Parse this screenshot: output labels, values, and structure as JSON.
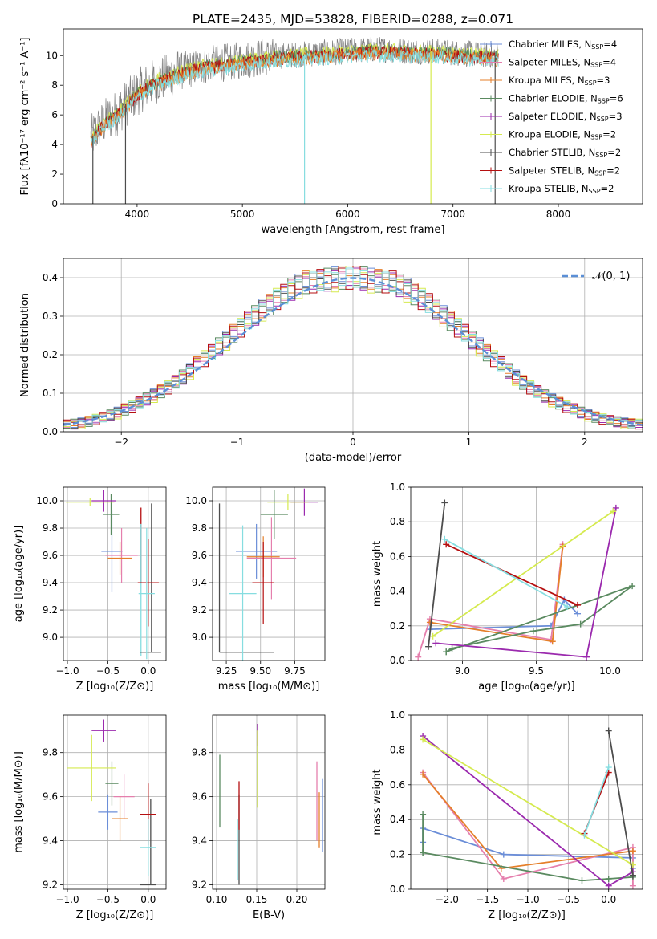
{
  "colors": {
    "Chabrier MILES": "#6b8ed8",
    "Salpeter MILES": "#e57fad",
    "Kroupa MILES": "#e57f2a",
    "Chabrier ELODIE": "#5a8a60",
    "Salpeter ELODIE": "#9b2aae",
    "Kroupa ELODIE": "#d5ea4f",
    "Chabrier STELIB": "#4d4d4d",
    "Salpeter STELIB": "#b50f10",
    "Kroupa STELIB": "#86dde0",
    "normal": "#5b8fd6",
    "grid": "#b0b0b0",
    "spectrum": "#7f7f7f"
  },
  "chart_data": [
    {
      "id": "spectrum",
      "type": "line",
      "title": "PLATE=2435, MJD=53828, FIBERID=0288, z=0.071",
      "xlabel": "wavelength [Angstrom, rest frame]",
      "ylabel": "Flux [fλ10⁻¹⁷ erg cm⁻² s⁻¹ A⁻¹]",
      "xlim": [
        3300,
        8800
      ],
      "ylim": [
        0,
        11.8
      ],
      "xticks": [
        "4000",
        "5000",
        "6000",
        "7000",
        "8000"
      ],
      "xtick_values": [
        4000,
        5000,
        6000,
        7000,
        8000
      ],
      "yticks": [
        "0",
        "2",
        "4",
        "6",
        "8",
        "10"
      ],
      "ytick_values": [
        0,
        2,
        4,
        6,
        8,
        10
      ],
      "grid": false,
      "legend_placement": "lower-right",
      "continuum": {
        "x": [
          3560,
          3600,
          3700,
          3800,
          3900,
          4000,
          4100,
          4200,
          4300,
          4400,
          4500,
          4600,
          4800,
          5000,
          5200,
          5400,
          5600,
          5800,
          6000,
          6200,
          6400,
          6600,
          6800,
          7000,
          7200,
          7400
        ],
        "y": [
          4.4,
          4.8,
          5.6,
          6.1,
          6.8,
          7.5,
          8.0,
          8.4,
          8.6,
          8.9,
          9.1,
          9.3,
          9.5,
          9.7,
          9.9,
          10.0,
          10.1,
          10.2,
          10.3,
          10.4,
          10.4,
          10.3,
          10.3,
          10.2,
          10.1,
          10.0
        ]
      },
      "spikes": [
        {
          "x": 3580,
          "low": 0.0
        },
        {
          "x": 3890,
          "low": 0.0
        },
        {
          "x": 5590,
          "low": 0.0
        },
        {
          "x": 6790,
          "low": 0.0
        },
        {
          "x": 7400,
          "low": 0.0
        }
      ],
      "legend": [
        "Chabrier MILES, N_SSP=4",
        "Salpeter MILES, N_SSP=4",
        "Kroupa MILES, N_SSP=3",
        "Chabrier ELODIE, N_SSP=6",
        "Salpeter ELODIE, N_SSP=3",
        "Kroupa ELODIE, N_SSP=2",
        "Chabrier STELIB, N_SSP=2",
        "Salpeter STELIB, N_SSP=2",
        "Kroupa STELIB, N_SSP=2"
      ]
    },
    {
      "id": "residuals",
      "type": "line",
      "xlabel": "(data-model)/error",
      "ylabel": "Normed distribution",
      "xlim": [
        -2.5,
        2.5
      ],
      "ylim": [
        0,
        0.45
      ],
      "xticks": [
        "−2",
        "−1",
        "0",
        "1",
        "2"
      ],
      "xtick_values": [
        -2,
        -1,
        0,
        1,
        2
      ],
      "yticks": [
        "0.0",
        "0.1",
        "0.2",
        "0.3",
        "0.4"
      ],
      "ytick_values": [
        0,
        0.1,
        0.2,
        0.3,
        0.4
      ],
      "grid": true,
      "legend_placement": "top-right",
      "normal_label": "𝒩(0, 1)",
      "hist_bin_width": 0.1,
      "hist_base": [
        0.018,
        0.02,
        0.023,
        0.027,
        0.032,
        0.037,
        0.043,
        0.05,
        0.058,
        0.066,
        0.075,
        0.085,
        0.095,
        0.105,
        0.115,
        0.128,
        0.142,
        0.158,
        0.175,
        0.19,
        0.205,
        0.222,
        0.238,
        0.255,
        0.27,
        0.288,
        0.302,
        0.318,
        0.33,
        0.345,
        0.355,
        0.37,
        0.38,
        0.388,
        0.39,
        0.392,
        0.395,
        0.398,
        0.4,
        0.4,
        0.4,
        0.398,
        0.395,
        0.392,
        0.39,
        0.388,
        0.38,
        0.37,
        0.358,
        0.345,
        0.332,
        0.318,
        0.302,
        0.288,
        0.27,
        0.255,
        0.238,
        0.222,
        0.205,
        0.19,
        0.175,
        0.158,
        0.142,
        0.128,
        0.115,
        0.103,
        0.093,
        0.083,
        0.074,
        0.065,
        0.058,
        0.05,
        0.044,
        0.038,
        0.033,
        0.029,
        0.026,
        0.023,
        0.021,
        0.02
      ],
      "hist_offsets": [
        [
          0.01,
          -0.02,
          0.03,
          -0.01,
          0.02
        ],
        [
          -0.015,
          0.025,
          -0.02,
          0.015,
          -0.01
        ],
        [
          0.02,
          -0.01,
          -0.025,
          0.03,
          0.005
        ],
        [
          -0.02,
          0.03,
          0.01,
          -0.03,
          0.02
        ],
        [
          0.025,
          -0.03,
          0.02,
          0.01,
          -0.02
        ],
        [
          -0.01,
          0.015,
          -0.035,
          0.02,
          0.03
        ],
        [
          0.005,
          -0.025,
          0.025,
          -0.015,
          0.01
        ],
        [
          0.03,
          0.01,
          -0.01,
          0.025,
          -0.03
        ],
        [
          -0.025,
          0.02,
          0.015,
          -0.02,
          0.025
        ]
      ]
    },
    {
      "id": "age-vs-Z",
      "type": "scatter",
      "xlabel": "Z [log₁₀(Z/Z⊙)]",
      "ylabel": "age  [log₁₀(age/yr)]",
      "xlim": [
        -1.05,
        0.22
      ],
      "ylim": [
        8.83,
        10.1
      ],
      "xticks": [
        "−1.0",
        "−0.5",
        "0.0"
      ],
      "xtick_values": [
        -1.0,
        -0.5,
        0.0
      ],
      "yticks": [
        "9.0",
        "9.2",
        "9.4",
        "9.6",
        "9.8",
        "10.0"
      ],
      "ytick_values": [
        9.0,
        9.2,
        9.4,
        9.6,
        9.8,
        10.0
      ],
      "grid": true,
      "points": [
        {
          "series": "Chabrier MILES",
          "x": -0.45,
          "xerr": 0.13,
          "y": 9.63,
          "yerr": 0.3
        },
        {
          "series": "Salpeter MILES",
          "x": -0.33,
          "xerr": 0.2,
          "y": 9.6,
          "yerr": 0.2
        },
        {
          "series": "Kroupa MILES",
          "x": -0.35,
          "xerr": 0.15,
          "y": 9.58,
          "yerr": 0.12
        },
        {
          "series": "Chabrier ELODIE",
          "x": -0.46,
          "xerr": 0.1,
          "y": 9.9,
          "yerr": 0.15
        },
        {
          "series": "Salpeter ELODIE",
          "x": -0.55,
          "xerr": 0.15,
          "y": 10.0,
          "yerr": 0.08
        },
        {
          "series": "Kroupa ELODIE",
          "x": -0.72,
          "xerr": 0.3,
          "y": 9.99,
          "yerr": 0.03
        },
        {
          "series": "Chabrier STELIB",
          "x": 0.03,
          "xerr": 0.13,
          "y": 8.89,
          "yerr": 0.0
        },
        {
          "series": "Salpeter STELIB",
          "x": 0.0,
          "xerr": 0.13,
          "y": 9.4,
          "yerr": 0.32
        },
        {
          "series": "Kroupa STELIB",
          "x": -0.02,
          "xerr": 0.1,
          "y": 9.32,
          "yerr": 0.48
        }
      ],
      "vlines": [
        {
          "series": "Chabrier STELIB",
          "x": 0.04,
          "y0": 8.89,
          "y1": 9.98
        },
        {
          "series": "Salpeter STELIB",
          "x": -0.09,
          "y0": 9.4,
          "y1": 9.95
        },
        {
          "series": "Kroupa STELIB",
          "x": -0.09,
          "y0": 8.86,
          "y1": 9.83
        }
      ]
    },
    {
      "id": "age-vs-mass",
      "type": "scatter",
      "xlabel": "mass [log₁₀(M/M⊙)]",
      "ylabel": "",
      "xlim": [
        9.15,
        9.97
      ],
      "ylim": [
        8.83,
        10.1
      ],
      "xticks": [
        "9.25",
        "9.50",
        "9.75"
      ],
      "xtick_values": [
        9.25,
        9.5,
        9.75
      ],
      "yticks": [
        "9.0",
        "9.2",
        "9.4",
        "9.6",
        "9.8",
        "10.0"
      ],
      "ytick_values": [
        9.0,
        9.2,
        9.4,
        9.6,
        9.8,
        10.0
      ],
      "grid": true,
      "points": [
        {
          "series": "Chabrier MILES",
          "x": 9.47,
          "xerr": 0.15,
          "y": 9.63,
          "yerr": 0.2
        },
        {
          "series": "Salpeter MILES",
          "x": 9.58,
          "xerr": 0.18,
          "y": 9.58,
          "yerr": 0.3
        },
        {
          "series": "Kroupa MILES",
          "x": 9.52,
          "xerr": 0.12,
          "y": 9.59,
          "yerr": 0.15
        },
        {
          "series": "Chabrier ELODIE",
          "x": 9.6,
          "xerr": 0.1,
          "y": 9.9,
          "yerr": 0.18
        },
        {
          "series": "Salpeter ELODIE",
          "x": 9.82,
          "xerr": 0.1,
          "y": 9.99,
          "yerr": 0.1
        },
        {
          "series": "Kroupa ELODIE",
          "x": 9.7,
          "xerr": 0.15,
          "y": 9.99,
          "yerr": 0.06
        },
        {
          "series": "Chabrier STELIB",
          "x": 9.4,
          "xerr": 0.2,
          "y": 8.89,
          "yerr": 0.0
        },
        {
          "series": "Salpeter STELIB",
          "x": 9.52,
          "xerr": 0.08,
          "y": 9.4,
          "yerr": 0.3
        },
        {
          "series": "Kroupa STELIB",
          "x": 9.37,
          "xerr": 0.1,
          "y": 9.32,
          "yerr": 0.5
        }
      ],
      "vlines": [
        {
          "series": "Chabrier STELIB",
          "x": 9.2,
          "y0": 8.89,
          "y1": 9.98
        }
      ]
    },
    {
      "id": "weight-vs-age",
      "type": "line",
      "xlabel": "age  [log₁₀(age/yr)]",
      "ylabel": "mass weight",
      "xlim": [
        8.65,
        10.22
      ],
      "ylim": [
        0,
        1.0
      ],
      "xticks": [
        "9.0",
        "9.5",
        "10.0"
      ],
      "xtick_values": [
        9.0,
        9.5,
        10.0
      ],
      "yticks": [
        "0.0",
        "0.2",
        "0.4",
        "0.6",
        "0.8",
        "1.0"
      ],
      "ytick_values": [
        0,
        0.2,
        0.4,
        0.6,
        0.8,
        1.0
      ],
      "grid": true,
      "series": [
        {
          "color_key": "Chabrier MILES",
          "x": [
            8.78,
            9.6,
            9.69,
            9.78
          ],
          "y": [
            0.18,
            0.2,
            0.35,
            0.27
          ]
        },
        {
          "color_key": "Salpeter MILES",
          "x": [
            8.7,
            8.78,
            9.6,
            9.68
          ],
          "y": [
            0.02,
            0.24,
            0.12,
            0.67
          ]
        },
        {
          "color_key": "Kroupa MILES",
          "x": [
            8.78,
            9.61,
            9.68
          ],
          "y": [
            0.22,
            0.11,
            0.66
          ]
        },
        {
          "color_key": "Chabrier ELODIE",
          "x": [
            8.89,
            8.93,
            9.48,
            9.8,
            10.15,
            8.89
          ],
          "y": [
            0.05,
            0.07,
            0.17,
            0.21,
            0.43,
            0.05
          ]
        },
        {
          "color_key": "Salpeter ELODIE",
          "x": [
            8.82,
            9.84,
            10.04
          ],
          "y": [
            0.1,
            0.02,
            0.88
          ]
        },
        {
          "color_key": "Kroupa ELODIE",
          "x": [
            8.8,
            10.02
          ],
          "y": [
            0.14,
            0.86
          ]
        },
        {
          "color_key": "Chabrier STELIB",
          "x": [
            8.77,
            8.88
          ],
          "y": [
            0.08,
            0.91
          ]
        },
        {
          "color_key": "Salpeter STELIB",
          "x": [
            8.89,
            9.78
          ],
          "y": [
            0.67,
            0.32
          ]
        },
        {
          "color_key": "Kroupa STELIB",
          "x": [
            8.88,
            9.71
          ],
          "y": [
            0.7,
            0.31
          ]
        }
      ]
    },
    {
      "id": "mass-vs-Z",
      "type": "scatter",
      "xlabel": "Z [log₁₀(Z/Z⊙)]",
      "ylabel": "mass [log₁₀(M/M⊙)]",
      "xlim": [
        -1.05,
        0.22
      ],
      "ylim": [
        9.18,
        9.97
      ],
      "xticks": [
        "−1.0",
        "−0.5",
        "0.0"
      ],
      "xtick_values": [
        -1.0,
        -0.5,
        0.0
      ],
      "yticks": [
        "9.2",
        "9.4",
        "9.6",
        "9.8"
      ],
      "ytick_values": [
        9.2,
        9.4,
        9.6,
        9.8
      ],
      "grid": true,
      "points": [
        {
          "series": "Chabrier MILES",
          "x": -0.5,
          "xerr": 0.12,
          "y": 9.53,
          "yerr": 0.08
        },
        {
          "series": "Salpeter MILES",
          "x": -0.3,
          "xerr": 0.13,
          "y": 9.6,
          "yerr": 0.1
        },
        {
          "series": "Kroupa MILES",
          "x": -0.35,
          "xerr": 0.1,
          "y": 9.5,
          "yerr": 0.1
        },
        {
          "series": "Chabrier ELODIE",
          "x": -0.45,
          "xerr": 0.08,
          "y": 9.66,
          "yerr": 0.1
        },
        {
          "series": "Salpeter ELODIE",
          "x": -0.55,
          "xerr": 0.15,
          "y": 9.9,
          "yerr": 0.05
        },
        {
          "series": "Kroupa ELODIE",
          "x": -0.7,
          "xerr": 0.3,
          "y": 9.73,
          "yerr": 0.15
        },
        {
          "series": "Chabrier STELIB",
          "x": 0.0,
          "xerr": 0.1,
          "y": 9.2,
          "yerr": 0.0
        },
        {
          "series": "Salpeter STELIB",
          "x": 0.0,
          "xerr": 0.1,
          "y": 9.52,
          "yerr": 0.14
        },
        {
          "series": "Kroupa STELIB",
          "x": 0.0,
          "xerr": 0.1,
          "y": 9.37,
          "yerr": 0.13
        }
      ],
      "vlines": [
        {
          "series": "Chabrier STELIB",
          "x": 0.03,
          "y0": 9.2,
          "y1": 9.59
        }
      ]
    },
    {
      "id": "mass-vs-EBV",
      "type": "scatter",
      "xlabel": "E(B-V)",
      "ylabel": "",
      "xlim": [
        0.095,
        0.235
      ],
      "ylim": [
        9.18,
        9.97
      ],
      "xticks": [
        "0.10",
        "0.15",
        "0.20"
      ],
      "xtick_values": [
        0.1,
        0.15,
        0.2
      ],
      "yticks": [
        "9.2",
        "9.4",
        "9.6",
        "9.8"
      ],
      "ytick_values": [
        9.2,
        9.4,
        9.6,
        9.8
      ],
      "grid": true,
      "vlines": [
        {
          "series": "Chabrier ELODIE",
          "x": 0.104,
          "y0": 9.46,
          "y1": 9.79
        },
        {
          "series": "Chabrier STELIB",
          "x": 0.128,
          "y0": 9.2,
          "y1": 9.61
        },
        {
          "series": "Salpeter STELIB",
          "x": 0.128,
          "y0": 9.45,
          "y1": 9.67
        },
        {
          "series": "Kroupa STELIB",
          "x": 0.126,
          "y0": 9.22,
          "y1": 9.5
        },
        {
          "series": "Salpeter ELODIE",
          "x": 0.151,
          "y0": 9.83,
          "y1": 9.93
        },
        {
          "series": "Kroupa ELODIE",
          "x": 0.151,
          "y0": 9.55,
          "y1": 9.9
        },
        {
          "series": "Salpeter MILES",
          "x": 0.225,
          "y0": 9.4,
          "y1": 9.76
        },
        {
          "series": "Kroupa MILES",
          "x": 0.228,
          "y0": 9.37,
          "y1": 9.62
        },
        {
          "series": "Chabrier MILES",
          "x": 0.232,
          "y0": 9.35,
          "y1": 9.68
        }
      ]
    },
    {
      "id": "weight-vs-Z",
      "type": "line",
      "xlabel": "Z [log₁₀(Z/Z⊙)]",
      "ylabel": "mass weight",
      "xlim": [
        -2.45,
        0.42
      ],
      "ylim": [
        0,
        1.0
      ],
      "xticks": [
        "−2.0",
        "−1.5",
        "−1.0",
        "−0.5",
        "0.0"
      ],
      "xtick_values": [
        -2.0,
        -1.5,
        -1.0,
        -0.5,
        0.0
      ],
      "yticks": [
        "0.0",
        "0.2",
        "0.4",
        "0.6",
        "0.8",
        "1.0"
      ],
      "ytick_values": [
        0,
        0.2,
        0.4,
        0.6,
        0.8,
        1.0
      ],
      "grid": true,
      "series": [
        {
          "color_key": "Chabrier MILES",
          "x": [
            -2.3,
            -2.3,
            -1.3,
            0.3,
            0.3
          ],
          "y": [
            0.27,
            0.35,
            0.2,
            0.18,
            0.12
          ]
        },
        {
          "color_key": "Salpeter MILES",
          "x": [
            -2.3,
            -1.3,
            0.3,
            0.3
          ],
          "y": [
            0.67,
            0.06,
            0.24,
            0.02
          ]
        },
        {
          "color_key": "Kroupa MILES",
          "x": [
            -2.3,
            -1.33,
            0.3
          ],
          "y": [
            0.66,
            0.12,
            0.22
          ]
        },
        {
          "color_key": "Chabrier ELODIE",
          "x": [
            -2.3,
            -2.3,
            -2.3,
            -0.33,
            0.0,
            0.3
          ],
          "y": [
            0.43,
            0.21,
            0.21,
            0.05,
            0.06,
            0.07
          ]
        },
        {
          "color_key": "Salpeter ELODIE",
          "x": [
            -2.3,
            0.0,
            0.3
          ],
          "y": [
            0.88,
            0.02,
            0.1
          ]
        },
        {
          "color_key": "Kroupa ELODIE",
          "x": [
            -2.3,
            0.3
          ],
          "y": [
            0.86,
            0.14
          ]
        },
        {
          "color_key": "Chabrier STELIB",
          "x": [
            0.0,
            0.3
          ],
          "y": [
            0.91,
            0.08
          ]
        },
        {
          "color_key": "Salpeter STELIB",
          "x": [
            -0.3,
            0.0
          ],
          "y": [
            0.32,
            0.67
          ]
        },
        {
          "color_key": "Kroupa STELIB",
          "x": [
            -0.3,
            0.0
          ],
          "y": [
            0.31,
            0.7
          ]
        }
      ]
    }
  ]
}
